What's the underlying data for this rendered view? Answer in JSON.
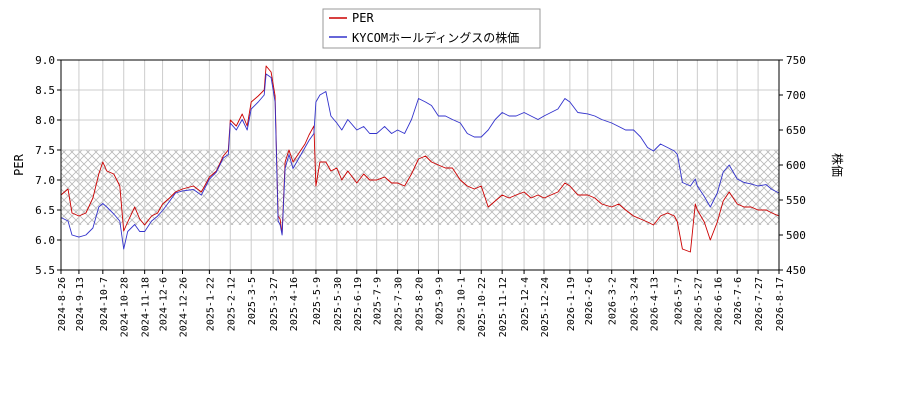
{
  "chart_data": {
    "type": "line",
    "legend": {
      "placement": "top-center",
      "entries": [
        {
          "name": "PER",
          "color": "#cc0000"
        },
        {
          "name": "KYCOMホールディングスの株価",
          "color": "#3333cc"
        }
      ]
    },
    "ylabel_left": "PER",
    "ylabel_right": "株価",
    "y_left": {
      "range": [
        5.5,
        9.0
      ],
      "ticks": [
        "5.5",
        "6.0",
        "6.5",
        "7.0",
        "7.5",
        "8.0",
        "8.5",
        "9.0"
      ]
    },
    "y_right": {
      "range": [
        450,
        750
      ],
      "ticks": [
        "450",
        "500",
        "550",
        "600",
        "650",
        "700",
        "750"
      ]
    },
    "shaded_band": {
      "axis": "left",
      "from": 6.25,
      "to": 7.5,
      "pattern": "cross-hatch"
    },
    "grid": true,
    "x_start": "2024-08-26",
    "x_end": "2026-08-17",
    "x_ticks": [
      "2024-8-26",
      "2024-9-13",
      "2024-10-7",
      "2024-10-28",
      "2024-11-18",
      "2024-12-6",
      "2024-12-26",
      "2025-1-22",
      "2025-2-12",
      "2025-3-5",
      "2025-3-27",
      "2025-4-16",
      "2025-5-9",
      "2025-5-30",
      "2025-6-19",
      "2025-7-9",
      "2025-7-30",
      "2025-8-20",
      "2025-9-9",
      "2025-10-1",
      "2025-10-22",
      "2025-11-12",
      "2025-12-4",
      "2025-12-24",
      "2026-1-19",
      "2026-2-6",
      "2026-3-2",
      "2026-3-24",
      "2026-4-13",
      "2026-5-7",
      "2026-5-27",
      "2026-6-16",
      "2026-7-6",
      "2026-7-27",
      "2026-8-17"
    ],
    "series": [
      {
        "name": "PER",
        "axis": "left",
        "color": "#cc0000",
        "points": [
          [
            "2024-08-26",
            6.75
          ],
          [
            "2024-09-02",
            6.85
          ],
          [
            "2024-09-06",
            6.45
          ],
          [
            "2024-09-13",
            6.4
          ],
          [
            "2024-09-20",
            6.45
          ],
          [
            "2024-09-27",
            6.7
          ],
          [
            "2024-10-03",
            7.1
          ],
          [
            "2024-10-07",
            7.3
          ],
          [
            "2024-10-11",
            7.15
          ],
          [
            "2024-10-18",
            7.1
          ],
          [
            "2024-10-24",
            6.9
          ],
          [
            "2024-10-28",
            6.15
          ],
          [
            "2024-11-01",
            6.3
          ],
          [
            "2024-11-08",
            6.55
          ],
          [
            "2024-11-13",
            6.35
          ],
          [
            "2024-11-18",
            6.25
          ],
          [
            "2024-11-25",
            6.4
          ],
          [
            "2024-12-01",
            6.45
          ],
          [
            "2024-12-06",
            6.6
          ],
          [
            "2024-12-13",
            6.7
          ],
          [
            "2024-12-19",
            6.8
          ],
          [
            "2024-12-26",
            6.85
          ],
          [
            "2025-01-06",
            6.9
          ],
          [
            "2025-01-14",
            6.8
          ],
          [
            "2025-01-22",
            7.05
          ],
          [
            "2025-01-29",
            7.15
          ],
          [
            "2025-02-05",
            7.4
          ],
          [
            "2025-02-10",
            7.5
          ],
          [
            "2025-02-12",
            8.0
          ],
          [
            "2025-02-18",
            7.9
          ],
          [
            "2025-02-24",
            8.1
          ],
          [
            "2025-03-01",
            7.9
          ],
          [
            "2025-03-05",
            8.3
          ],
          [
            "2025-03-12",
            8.4
          ],
          [
            "2025-03-18",
            8.5
          ],
          [
            "2025-03-20",
            8.9
          ],
          [
            "2025-03-25",
            8.8
          ],
          [
            "2025-03-29",
            8.4
          ],
          [
            "2025-04-01",
            6.4
          ],
          [
            "2025-04-03",
            6.35
          ],
          [
            "2025-04-05",
            6.1
          ],
          [
            "2025-04-08",
            7.3
          ],
          [
            "2025-04-12",
            7.5
          ],
          [
            "2025-04-16",
            7.3
          ],
          [
            "2025-04-22",
            7.45
          ],
          [
            "2025-04-28",
            7.6
          ],
          [
            "2025-05-02",
            7.75
          ],
          [
            "2025-05-07",
            7.9
          ],
          [
            "2025-05-09",
            6.9
          ],
          [
            "2025-05-13",
            7.3
          ],
          [
            "2025-05-19",
            7.3
          ],
          [
            "2025-05-24",
            7.15
          ],
          [
            "2025-05-30",
            7.2
          ],
          [
            "2025-06-04",
            7.0
          ],
          [
            "2025-06-10",
            7.15
          ],
          [
            "2025-06-19",
            6.95
          ],
          [
            "2025-06-26",
            7.1
          ],
          [
            "2025-07-02",
            7.0
          ],
          [
            "2025-07-09",
            7.0
          ],
          [
            "2025-07-17",
            7.05
          ],
          [
            "2025-07-24",
            6.95
          ],
          [
            "2025-07-30",
            6.95
          ],
          [
            "2025-08-06",
            6.9
          ],
          [
            "2025-08-13",
            7.1
          ],
          [
            "2025-08-20",
            7.35
          ],
          [
            "2025-08-27",
            7.4
          ],
          [
            "2025-09-02",
            7.3
          ],
          [
            "2025-09-09",
            7.25
          ],
          [
            "2025-09-16",
            7.2
          ],
          [
            "2025-09-23",
            7.2
          ],
          [
            "2025-10-01",
            7.0
          ],
          [
            "2025-10-08",
            6.9
          ],
          [
            "2025-10-15",
            6.85
          ],
          [
            "2025-10-22",
            6.9
          ],
          [
            "2025-10-29",
            6.55
          ],
          [
            "2025-11-05",
            6.65
          ],
          [
            "2025-11-12",
            6.75
          ],
          [
            "2025-11-19",
            6.7
          ],
          [
            "2025-11-26",
            6.75
          ],
          [
            "2025-12-04",
            6.8
          ],
          [
            "2025-12-11",
            6.7
          ],
          [
            "2025-12-18",
            6.75
          ],
          [
            "2025-12-24",
            6.7
          ],
          [
            "2026-01-07",
            6.8
          ],
          [
            "2026-01-14",
            6.95
          ],
          [
            "2026-01-19",
            6.9
          ],
          [
            "2026-01-27",
            6.75
          ],
          [
            "2026-02-06",
            6.75
          ],
          [
            "2026-02-13",
            6.7
          ],
          [
            "2026-02-20",
            6.6
          ],
          [
            "2026-03-02",
            6.55
          ],
          [
            "2026-03-09",
            6.6
          ],
          [
            "2026-03-16",
            6.5
          ],
          [
            "2026-03-24",
            6.4
          ],
          [
            "2026-03-31",
            6.35
          ],
          [
            "2026-04-07",
            6.3
          ],
          [
            "2026-04-13",
            6.25
          ],
          [
            "2026-04-20",
            6.4
          ],
          [
            "2026-04-27",
            6.45
          ],
          [
            "2026-05-04",
            6.4
          ],
          [
            "2026-05-07",
            6.3
          ],
          [
            "2026-05-12",
            5.85
          ],
          [
            "2026-05-20",
            5.8
          ],
          [
            "2026-05-25",
            6.6
          ],
          [
            "2026-05-27",
            6.5
          ],
          [
            "2026-06-03",
            6.3
          ],
          [
            "2026-06-09",
            6.0
          ],
          [
            "2026-06-16",
            6.3
          ],
          [
            "2026-06-22",
            6.65
          ],
          [
            "2026-06-28",
            6.8
          ],
          [
            "2026-07-06",
            6.6
          ],
          [
            "2026-07-13",
            6.55
          ],
          [
            "2026-07-20",
            6.55
          ],
          [
            "2026-07-27",
            6.5
          ],
          [
            "2026-08-04",
            6.5
          ],
          [
            "2026-08-10",
            6.45
          ],
          [
            "2026-08-17",
            6.4
          ]
        ]
      },
      {
        "name": "KYCOMホールディングスの株価",
        "axis": "right",
        "color": "#3333cc",
        "points": [
          [
            "2024-08-26",
            525
          ],
          [
            "2024-09-02",
            520
          ],
          [
            "2024-09-06",
            500
          ],
          [
            "2024-09-13",
            497
          ],
          [
            "2024-09-20",
            500
          ],
          [
            "2024-09-27",
            510
          ],
          [
            "2024-10-03",
            540
          ],
          [
            "2024-10-07",
            545
          ],
          [
            "2024-10-11",
            540
          ],
          [
            "2024-10-18",
            530
          ],
          [
            "2024-10-24",
            520
          ],
          [
            "2024-10-28",
            480
          ],
          [
            "2024-11-01",
            505
          ],
          [
            "2024-11-08",
            515
          ],
          [
            "2024-11-13",
            505
          ],
          [
            "2024-11-18",
            505
          ],
          [
            "2024-11-25",
            520
          ],
          [
            "2024-12-01",
            527
          ],
          [
            "2024-12-06",
            535
          ],
          [
            "2024-12-13",
            548
          ],
          [
            "2024-12-19",
            560
          ],
          [
            "2024-12-26",
            563
          ],
          [
            "2025-01-06",
            565
          ],
          [
            "2025-01-14",
            557
          ],
          [
            "2025-01-22",
            580
          ],
          [
            "2025-01-29",
            590
          ],
          [
            "2025-02-05",
            610
          ],
          [
            "2025-02-10",
            615
          ],
          [
            "2025-02-12",
            660
          ],
          [
            "2025-02-18",
            650
          ],
          [
            "2025-02-24",
            665
          ],
          [
            "2025-03-01",
            650
          ],
          [
            "2025-03-05",
            680
          ],
          [
            "2025-03-12",
            690
          ],
          [
            "2025-03-18",
            700
          ],
          [
            "2025-03-20",
            730
          ],
          [
            "2025-03-25",
            725
          ],
          [
            "2025-03-29",
            690
          ],
          [
            "2025-04-01",
            520
          ],
          [
            "2025-04-03",
            515
          ],
          [
            "2025-04-05",
            500
          ],
          [
            "2025-04-08",
            595
          ],
          [
            "2025-04-12",
            615
          ],
          [
            "2025-04-16",
            595
          ],
          [
            "2025-04-22",
            610
          ],
          [
            "2025-04-28",
            625
          ],
          [
            "2025-05-02",
            635
          ],
          [
            "2025-05-07",
            645
          ],
          [
            "2025-05-09",
            690
          ],
          [
            "2025-05-13",
            700
          ],
          [
            "2025-05-19",
            705
          ],
          [
            "2025-05-24",
            670
          ],
          [
            "2025-05-30",
            660
          ],
          [
            "2025-06-04",
            650
          ],
          [
            "2025-06-10",
            665
          ],
          [
            "2025-06-19",
            650
          ],
          [
            "2025-06-26",
            655
          ],
          [
            "2025-07-02",
            645
          ],
          [
            "2025-07-09",
            645
          ],
          [
            "2025-07-17",
            655
          ],
          [
            "2025-07-24",
            645
          ],
          [
            "2025-07-30",
            650
          ],
          [
            "2025-08-06",
            645
          ],
          [
            "2025-08-13",
            665
          ],
          [
            "2025-08-20",
            695
          ],
          [
            "2025-08-27",
            690
          ],
          [
            "2025-09-02",
            685
          ],
          [
            "2025-09-09",
            670
          ],
          [
            "2025-09-16",
            670
          ],
          [
            "2025-09-23",
            665
          ],
          [
            "2025-10-01",
            660
          ],
          [
            "2025-10-08",
            645
          ],
          [
            "2025-10-15",
            640
          ],
          [
            "2025-10-22",
            640
          ],
          [
            "2025-10-29",
            650
          ],
          [
            "2025-11-05",
            665
          ],
          [
            "2025-11-12",
            675
          ],
          [
            "2025-11-19",
            670
          ],
          [
            "2025-11-26",
            670
          ],
          [
            "2025-12-04",
            675
          ],
          [
            "2025-12-11",
            670
          ],
          [
            "2025-12-18",
            665
          ],
          [
            "2025-12-24",
            670
          ],
          [
            "2026-01-07",
            680
          ],
          [
            "2026-01-14",
            695
          ],
          [
            "2026-01-19",
            690
          ],
          [
            "2026-01-27",
            675
          ],
          [
            "2026-02-06",
            673
          ],
          [
            "2026-02-13",
            670
          ],
          [
            "2026-02-20",
            665
          ],
          [
            "2026-03-02",
            660
          ],
          [
            "2026-03-09",
            655
          ],
          [
            "2026-03-16",
            650
          ],
          [
            "2026-03-24",
            650
          ],
          [
            "2026-03-31",
            640
          ],
          [
            "2026-04-07",
            625
          ],
          [
            "2026-04-13",
            620
          ],
          [
            "2026-04-20",
            630
          ],
          [
            "2026-04-27",
            625
          ],
          [
            "2026-05-04",
            620
          ],
          [
            "2026-05-07",
            615
          ],
          [
            "2026-05-12",
            575
          ],
          [
            "2026-05-20",
            570
          ],
          [
            "2026-05-25",
            580
          ],
          [
            "2026-05-27",
            570
          ],
          [
            "2026-06-03",
            555
          ],
          [
            "2026-06-09",
            540
          ],
          [
            "2026-06-16",
            560
          ],
          [
            "2026-06-22",
            590
          ],
          [
            "2026-06-28",
            600
          ],
          [
            "2026-07-06",
            580
          ],
          [
            "2026-07-13",
            575
          ],
          [
            "2026-07-20",
            573
          ],
          [
            "2026-07-27",
            570
          ],
          [
            "2026-08-04",
            572
          ],
          [
            "2026-08-10",
            565
          ],
          [
            "2026-08-17",
            560
          ]
        ]
      }
    ]
  }
}
